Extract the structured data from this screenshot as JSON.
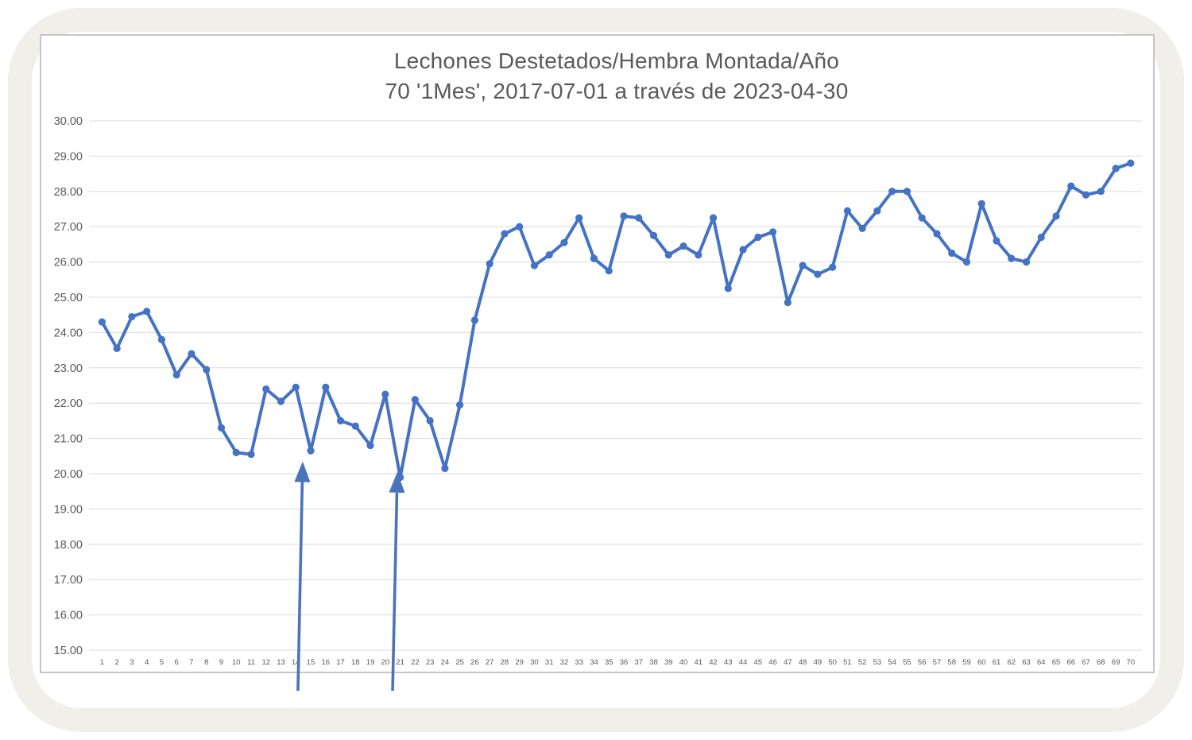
{
  "chart_data": {
    "type": "line",
    "title_line1": "Lechones Destetados/Hembra Montada/Año",
    "title_line2": "70 '1Mes', 2017-07-01 a través de 2023-04-30",
    "xlabel": "",
    "ylabel": "",
    "ylim": [
      15,
      30
    ],
    "ytick_step": 1,
    "ytick_labels": [
      "30.00",
      "29.00",
      "28.00",
      "27.00",
      "26.00",
      "25.00",
      "24.00",
      "23.00",
      "22.00",
      "21.00",
      "20.00",
      "19.00",
      "18.00",
      "17.00",
      "16.00",
      "15.00"
    ],
    "grid": true,
    "legend_position": "none",
    "categories": [
      1,
      2,
      3,
      4,
      5,
      6,
      7,
      8,
      9,
      10,
      11,
      12,
      13,
      14,
      15,
      16,
      17,
      18,
      19,
      20,
      21,
      22,
      23,
      24,
      25,
      26,
      27,
      28,
      29,
      30,
      31,
      32,
      33,
      34,
      35,
      36,
      37,
      38,
      39,
      40,
      41,
      42,
      43,
      44,
      45,
      46,
      47,
      48,
      49,
      50,
      51,
      52,
      53,
      54,
      55,
      56,
      57,
      58,
      59,
      60,
      61,
      62,
      63,
      64,
      65,
      66,
      67,
      68,
      69,
      70
    ],
    "values": [
      24.3,
      23.55,
      24.45,
      24.6,
      23.8,
      22.8,
      23.4,
      22.95,
      21.3,
      20.6,
      20.55,
      22.4,
      22.05,
      22.45,
      20.65,
      22.45,
      21.5,
      21.35,
      20.8,
      22.25,
      19.9,
      22.1,
      21.5,
      20.15,
      21.95,
      24.35,
      25.95,
      26.8,
      27.0,
      25.9,
      26.2,
      26.55,
      27.25,
      26.1,
      25.75,
      27.3,
      27.25,
      26.75,
      26.2,
      26.45,
      26.2,
      27.25,
      25.25,
      26.35,
      26.7,
      26.85,
      24.85,
      25.9,
      25.65,
      25.85,
      27.45,
      26.95,
      27.45,
      28.0,
      28.0,
      27.25,
      26.8,
      26.25,
      26.0,
      27.65,
      26.6,
      26.1,
      26.0,
      26.7,
      27.3,
      28.15,
      27.9,
      28.0,
      28.65,
      28.8
    ],
    "annotations": [
      {
        "type": "up-arrow",
        "x_tail_index": 14.14,
        "x_tip_index": 14.46,
        "y_tip_value": 20.35,
        "y_tail_value": 13.85
      },
      {
        "type": "up-arrow",
        "x_tail_index": 20.49,
        "x_tip_index": 20.81,
        "y_tip_value": 20.05,
        "y_tail_value": 13.85
      }
    ],
    "series_color": "#4472c4",
    "arrow_color": "#4a74ba",
    "grid_color": "#d9d9d9",
    "text_color": "#595959"
  }
}
